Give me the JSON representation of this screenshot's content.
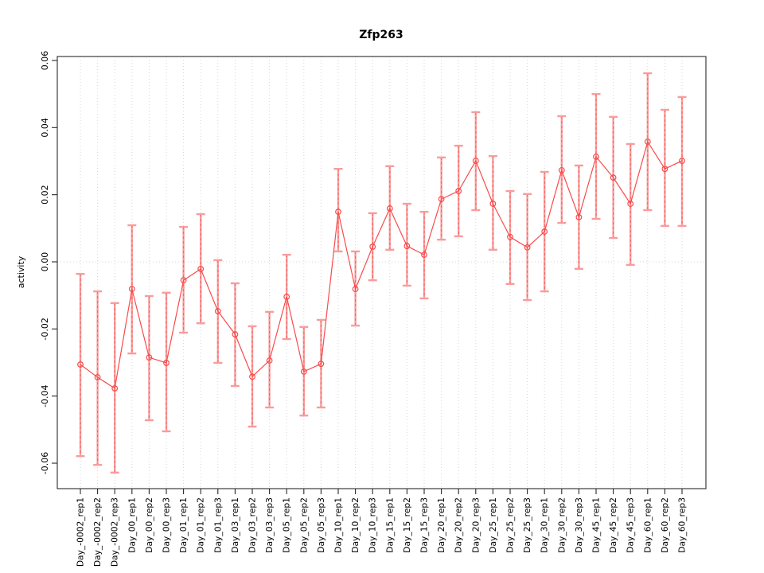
{
  "chart_data": {
    "type": "line",
    "title": "Zfp263",
    "xlabel": "",
    "ylabel": "activity",
    "ylim": [
      -0.06,
      0.06
    ],
    "yticks": [
      -0.06,
      -0.04,
      -0.02,
      0.0,
      0.02,
      0.04,
      0.06
    ],
    "ytick_labels": [
      "-0.06",
      "-0.04",
      "-0.02",
      "0.00",
      "0.02",
      "0.04",
      "0.06"
    ],
    "grid": "vertical-dotted-per-category-plus-zero-line",
    "legend": "none",
    "marker": "open-circle",
    "error_bars": true,
    "categories": [
      "Day_-0002_rep1",
      "Day_-0002_rep2",
      "Day_-0002_rep3",
      "Day_00_rep1",
      "Day_00_rep2",
      "Day_00_rep3",
      "Day_01_rep1",
      "Day_01_rep2",
      "Day_01_rep3",
      "Day_03_rep1",
      "Day_03_rep2",
      "Day_03_rep3",
      "Day_05_rep1",
      "Day_05_rep2",
      "Day_05_rep3",
      "Day_10_rep1",
      "Day_10_rep2",
      "Day_10_rep3",
      "Day_15_rep1",
      "Day_15_rep2",
      "Day_15_rep3",
      "Day_20_rep1",
      "Day_20_rep2",
      "Day_20_rep3",
      "Day_25_rep1",
      "Day_25_rep2",
      "Day_25_rep3",
      "Day_30_rep1",
      "Day_30_rep2",
      "Day_30_rep3",
      "Day_45_rep1",
      "Day_45_rep2",
      "Day_45_rep3",
      "Day_60_rep1",
      "Day_60_rep2",
      "Day_60_rep3"
    ],
    "values": [
      -0.0306,
      -0.0344,
      -0.0377,
      -0.0081,
      -0.0285,
      -0.0301,
      -0.0055,
      -0.0021,
      -0.0147,
      -0.0216,
      -0.0342,
      -0.0294,
      -0.0104,
      -0.0327,
      -0.0304,
      0.0149,
      -0.0081,
      0.0045,
      0.0159,
      0.0047,
      0.0021,
      0.0187,
      0.0211,
      0.0301,
      0.0173,
      0.0074,
      0.0043,
      0.009,
      0.0273,
      0.0133,
      0.0313,
      0.0251,
      0.0173,
      0.0358,
      0.0277,
      0.0301
    ],
    "error_high": [
      -0.0036,
      -0.0088,
      -0.0123,
      0.0109,
      -0.0102,
      -0.0092,
      0.0104,
      0.0142,
      0.0005,
      -0.0064,
      -0.0192,
      -0.0149,
      0.0021,
      -0.0194,
      -0.0173,
      0.0277,
      0.0031,
      0.0145,
      0.0285,
      0.0173,
      0.0149,
      0.0311,
      0.0346,
      0.0446,
      0.0315,
      0.0211,
      0.0202,
      0.0268,
      0.0434,
      0.0287,
      0.05,
      0.0432,
      0.0351,
      0.0562,
      0.0453,
      0.0491
    ],
    "error_low": [
      -0.0579,
      -0.0605,
      -0.0628,
      -0.0273,
      -0.0472,
      -0.0505,
      -0.0211,
      -0.0183,
      -0.0301,
      -0.037,
      -0.0491,
      -0.0434,
      -0.023,
      -0.0458,
      -0.0434,
      0.0031,
      -0.019,
      -0.0055,
      0.0036,
      -0.0071,
      -0.0109,
      0.0066,
      0.0076,
      0.0154,
      0.0036,
      -0.0066,
      -0.0114,
      -0.0088,
      0.0116,
      -0.0021,
      0.0128,
      0.0071,
      -0.0009,
      0.0154,
      0.0107,
      0.0107
    ],
    "colors": {
      "series": "#f84b4b",
      "error_bar": "#f99c9c",
      "error_bar_dash": "#f44444",
      "grid": "#d6d6d6",
      "axis": "#2a2a2a",
      "text": "#000000",
      "background": "#ffffff"
    }
  }
}
